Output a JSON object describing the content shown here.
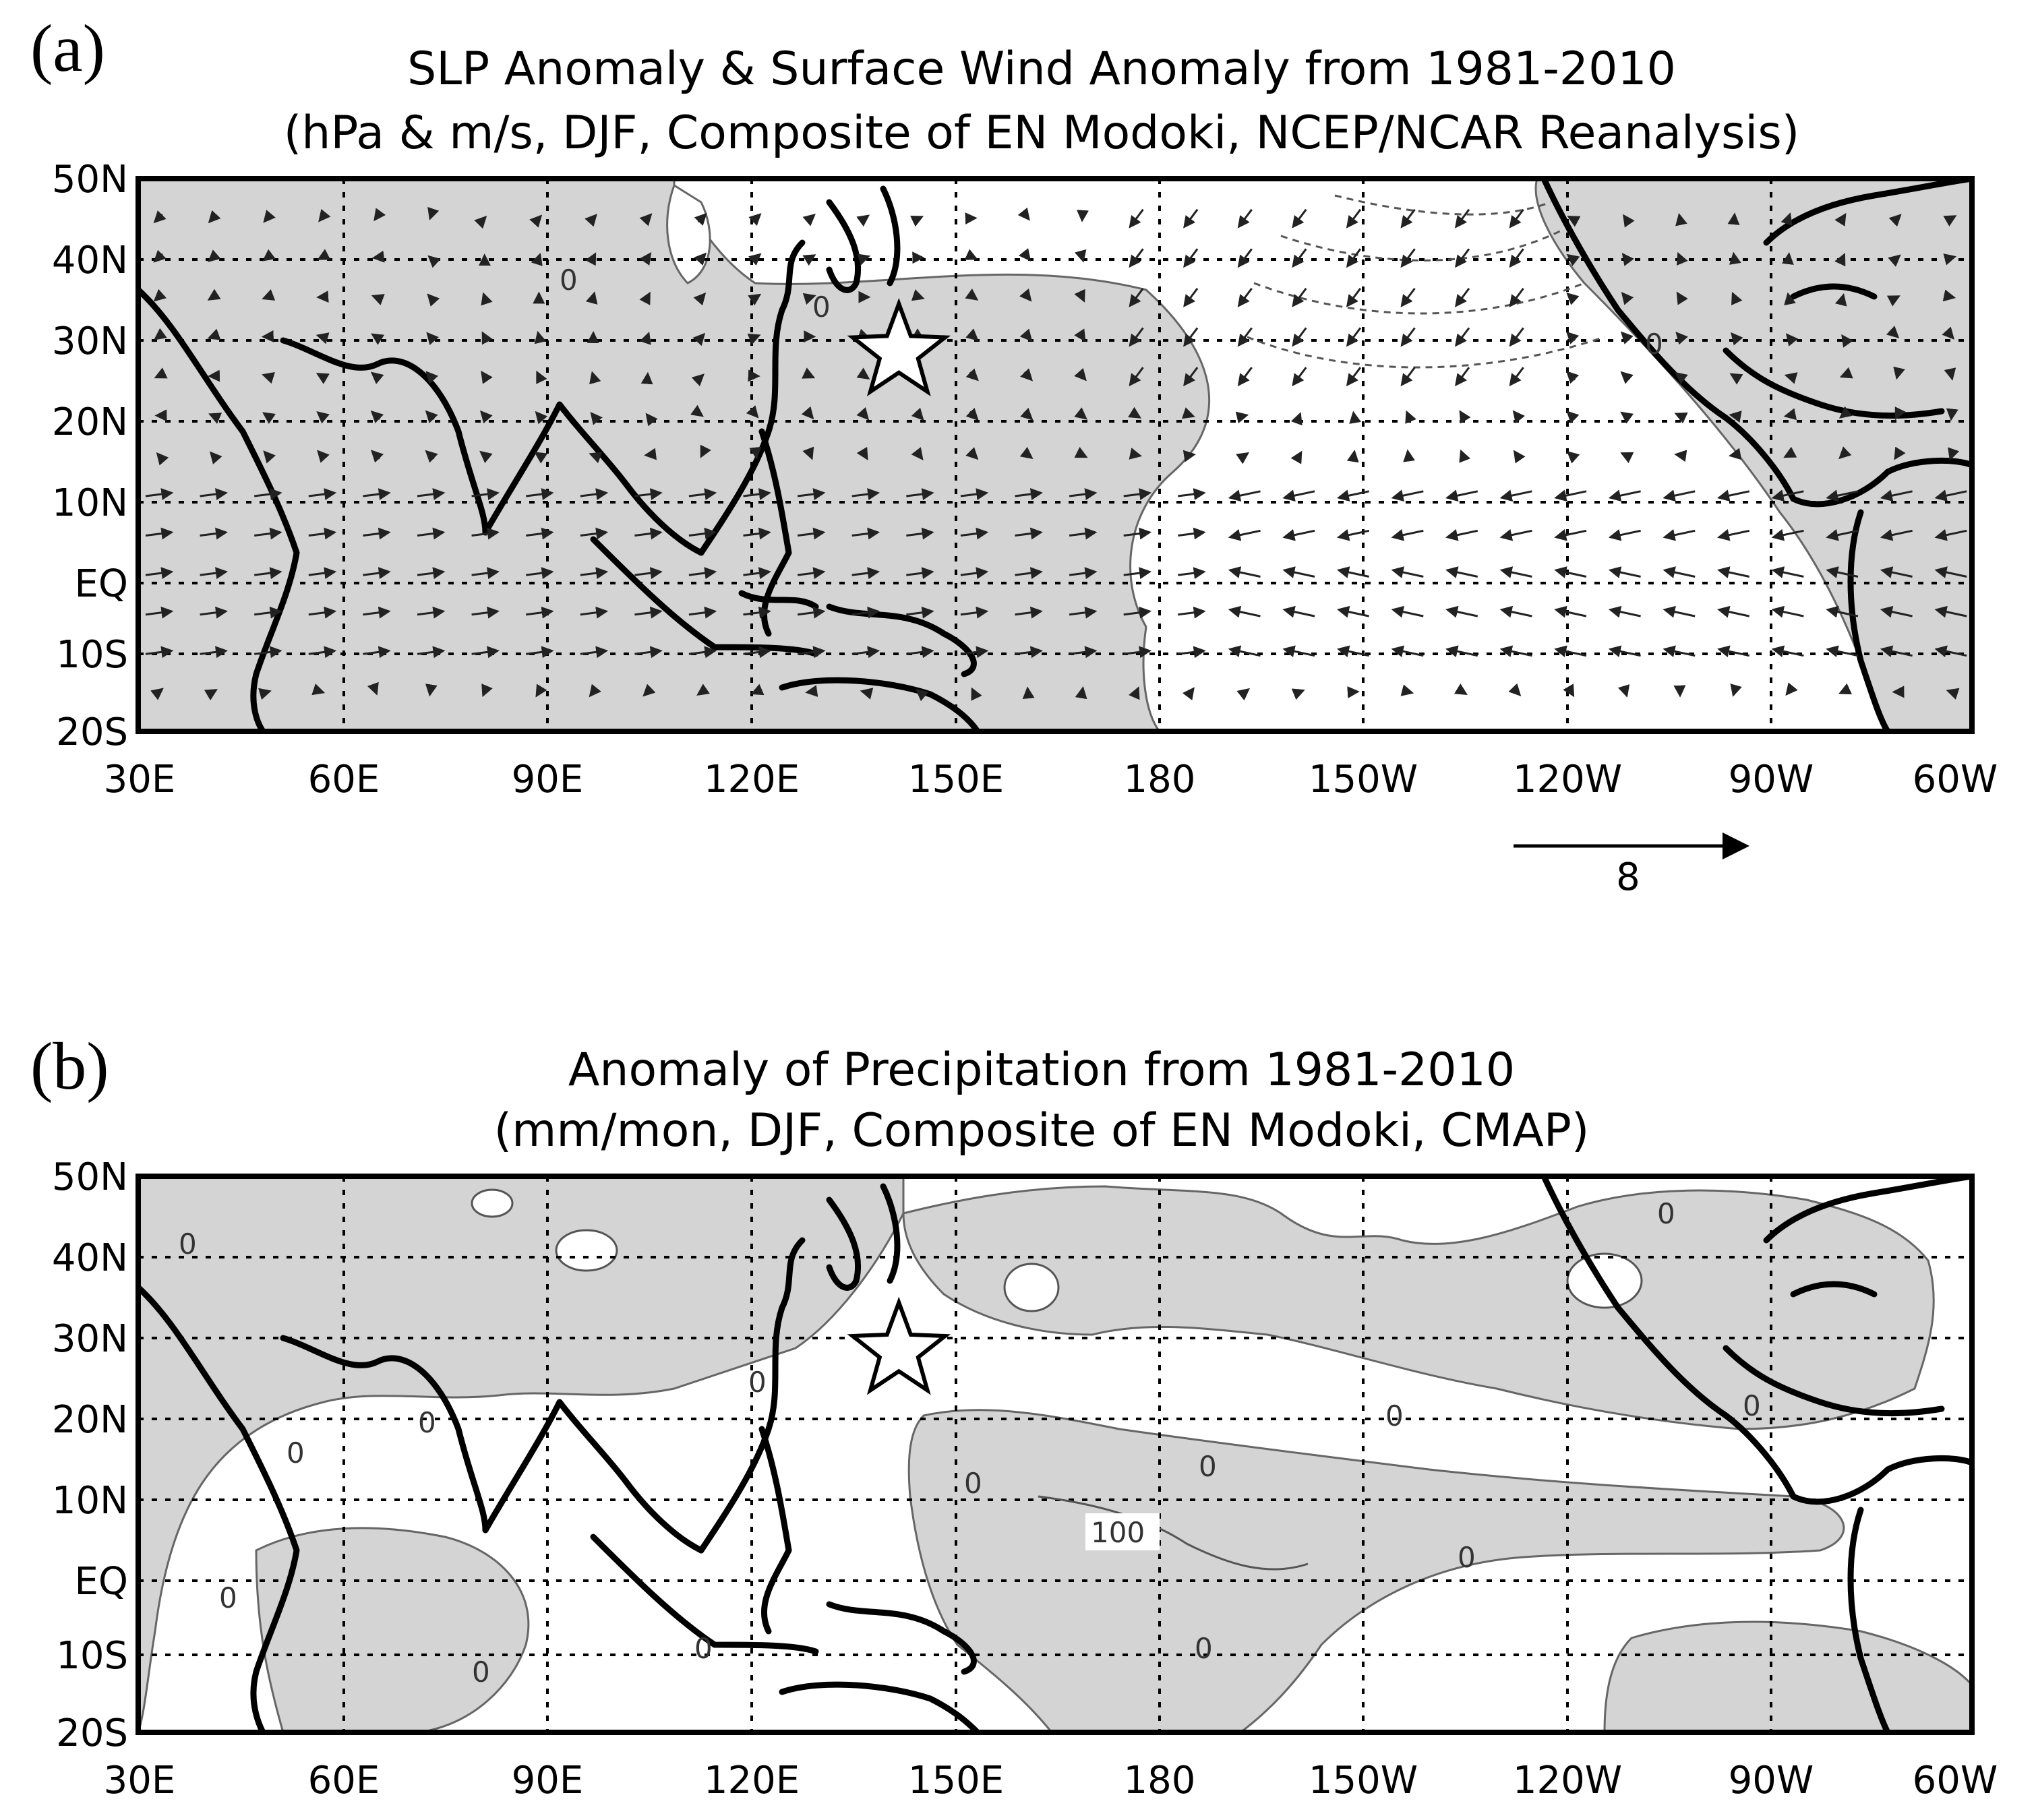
{
  "panels": [
    {
      "letter": "(a)",
      "title_line1": "SLP Anomaly & Surface Wind Anomaly from 1981-2010",
      "title_line2": "(hPa & m/s, DJF, Composite of EN Modoki, NCEP/NCAR Reanalysis)",
      "contour_labels": [
        "0",
        "0",
        "0"
      ],
      "reference_vector_label": "8"
    },
    {
      "letter": "(b)",
      "title_line1": "Anomaly of Precipitation from 1981-2010",
      "title_line2": "(mm/mon, DJF, Composite of EN Modoki, CMAP)",
      "contour_labels": [
        "0",
        "0",
        "0",
        "0",
        "0",
        "0",
        "0",
        "0",
        "100",
        "0",
        "0",
        "0",
        "0",
        "0",
        "0"
      ]
    }
  ],
  "axes": {
    "lat_labels": [
      "50N",
      "40N",
      "30N",
      "20N",
      "10N",
      "EQ",
      "10S",
      "20S"
    ],
    "lon_labels": [
      "30E",
      "60E",
      "90E",
      "120E",
      "150E",
      "180",
      "150W",
      "120W",
      "90W",
      "60W"
    ]
  },
  "marker": {
    "symbol": "star",
    "lon": 142,
    "lat": 28
  },
  "colors": {
    "shading": "#d4d4d4",
    "background": "#ffffff",
    "lines": "#000000"
  }
}
